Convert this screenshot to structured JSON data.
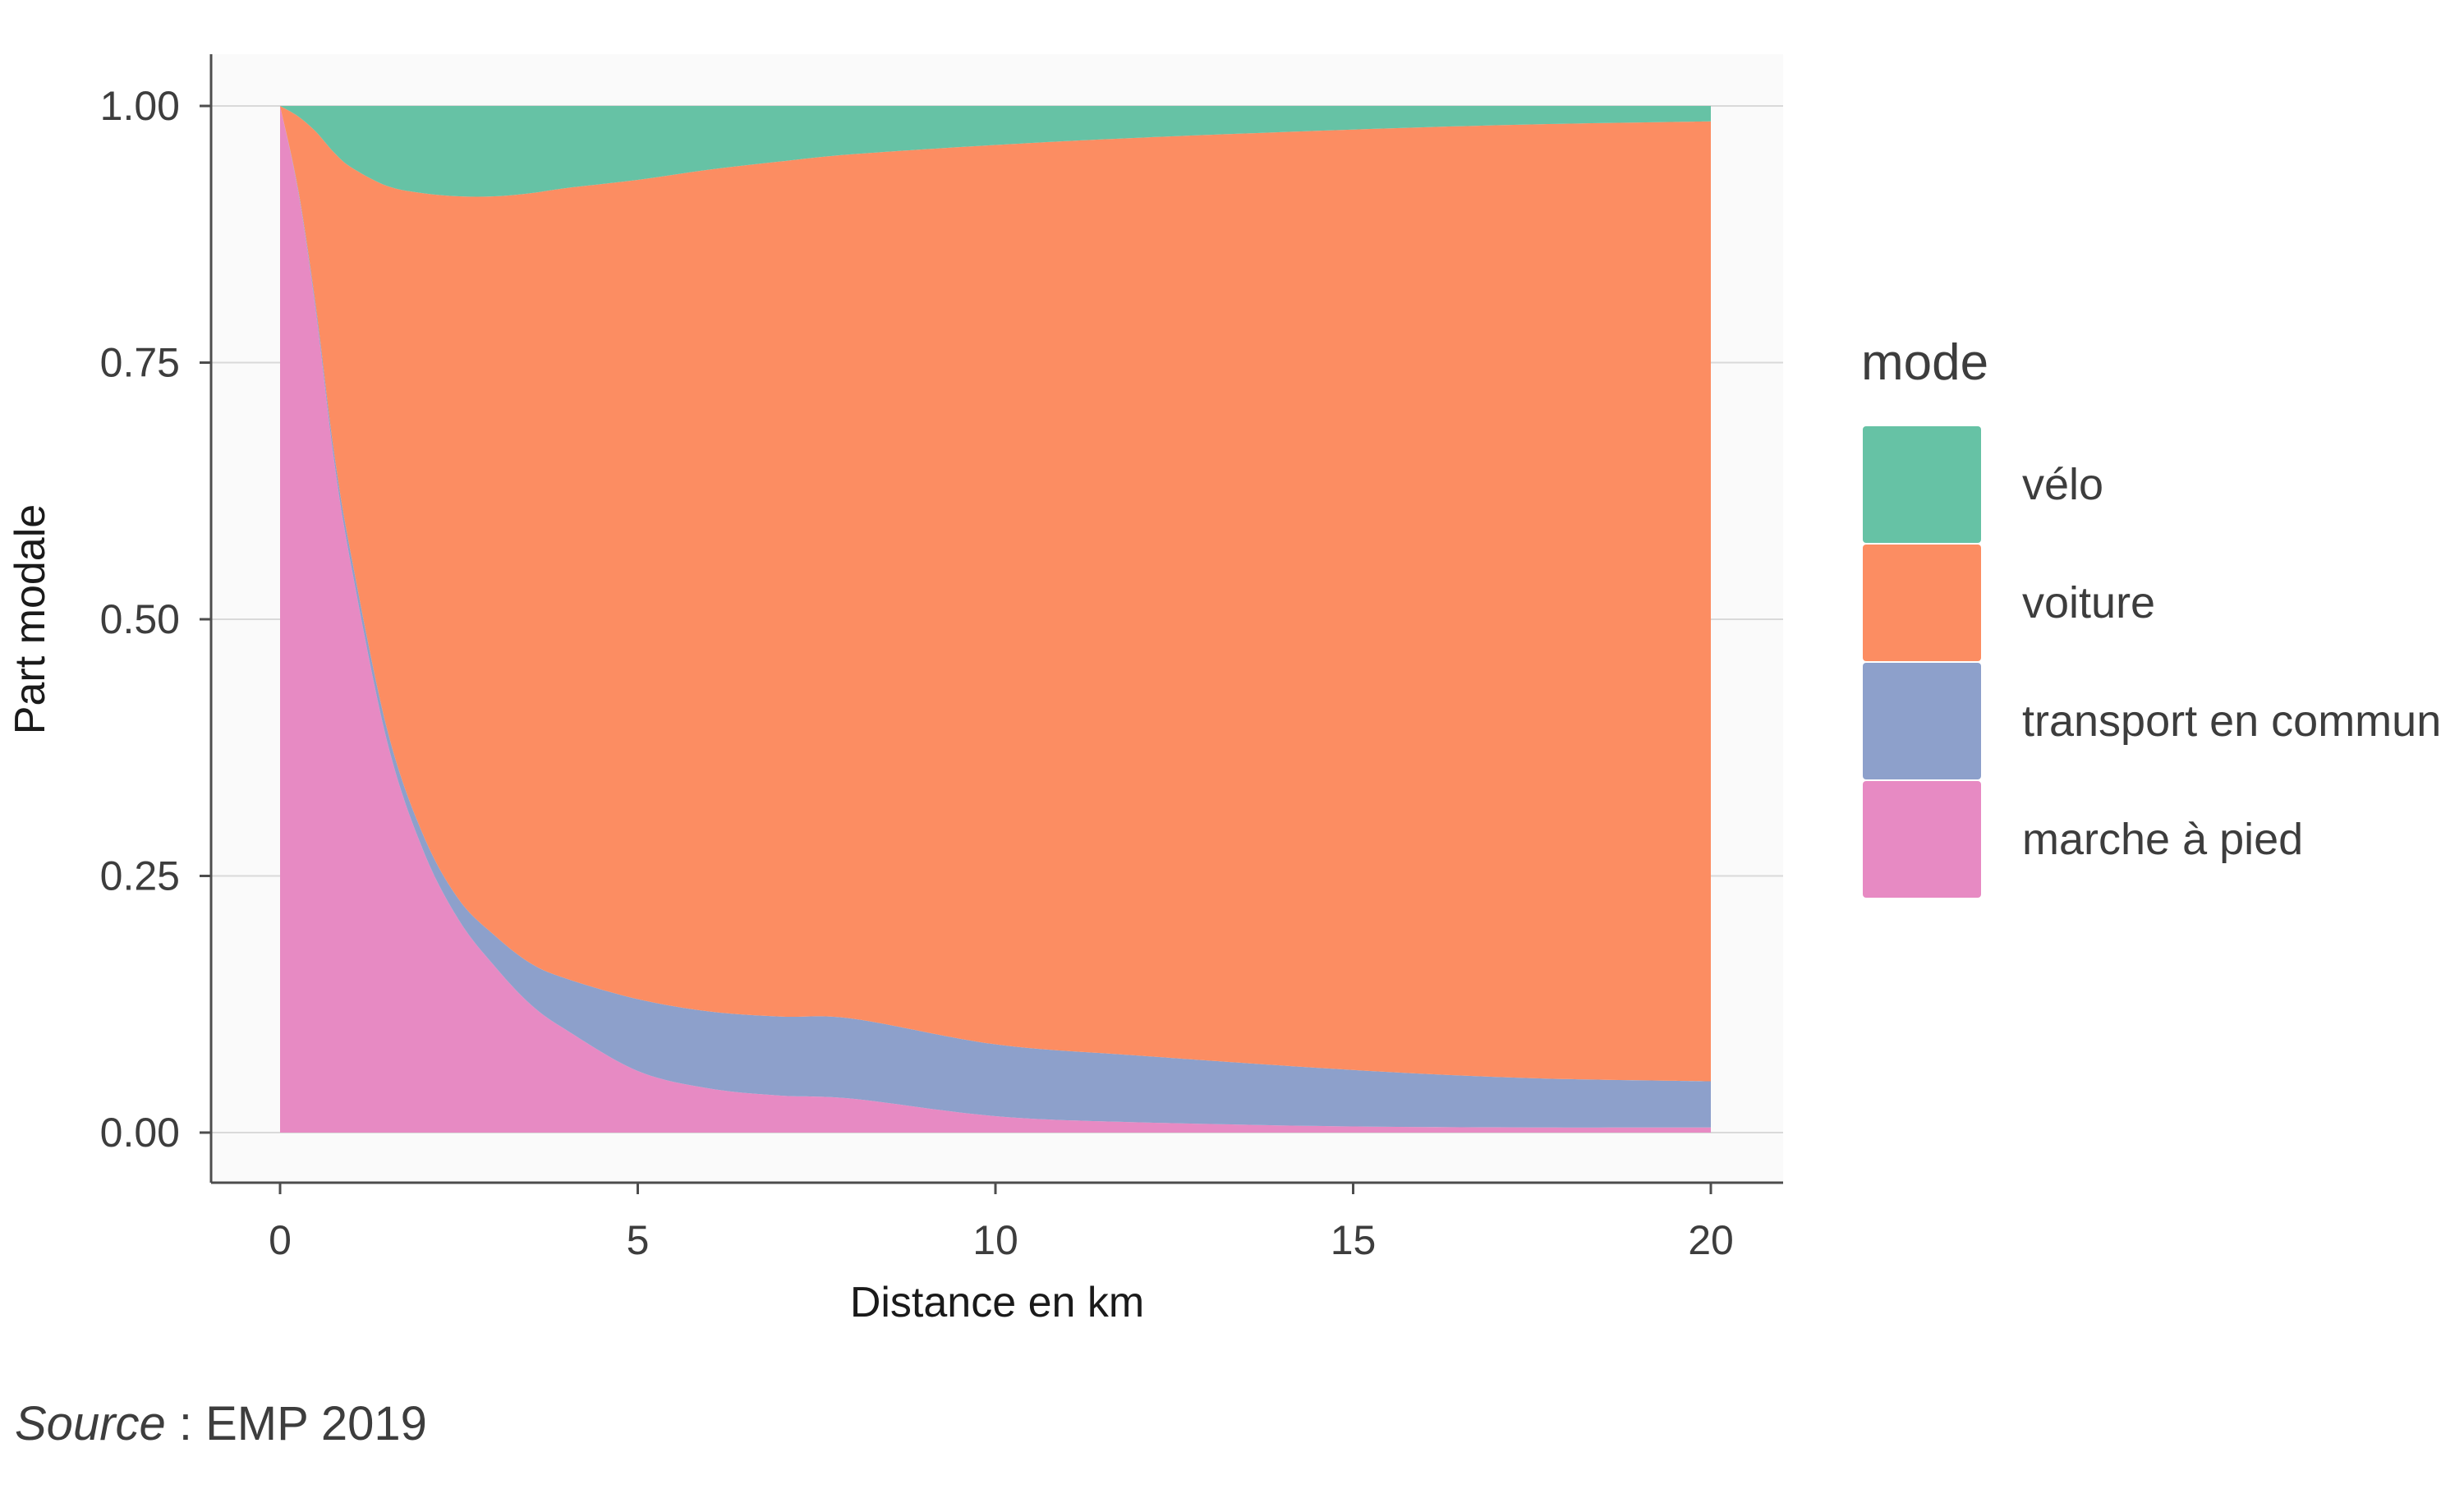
{
  "chart_data": {
    "type": "area",
    "stacked": true,
    "xlabel": "Distance en km",
    "ylabel": "Part modale",
    "xlim": [
      0,
      20
    ],
    "ylim": [
      0,
      1
    ],
    "x_ticks": [
      "0",
      "5",
      "10",
      "15",
      "20"
    ],
    "y_ticks": [
      "0.00",
      "0.25",
      "0.50",
      "0.75",
      "1.00"
    ],
    "grid": "horizontal",
    "legend": {
      "title": "mode",
      "position": "right"
    },
    "x": [
      0,
      0.25,
      0.5,
      0.75,
      1,
      1.5,
      2,
      2.5,
      3,
      3.5,
      4,
      5,
      6,
      7,
      8,
      10,
      12,
      15,
      17.5,
      20
    ],
    "series": [
      {
        "name": "vélo",
        "color": "#66c2a5",
        "values": [
          0,
          0.01,
          0.025,
          0.045,
          0.06,
          0.078,
          0.085,
          0.088,
          0.088,
          0.085,
          0.08,
          0.072,
          0.062,
          0.054,
          0.047,
          0.038,
          0.031,
          0.023,
          0.018,
          0.015
        ]
      },
      {
        "name": "voiture",
        "color": "#fc8d62",
        "values": [
          0,
          0.07,
          0.17,
          0.29,
          0.38,
          0.53,
          0.625,
          0.685,
          0.72,
          0.75,
          0.77,
          0.798,
          0.82,
          0.833,
          0.842,
          0.876,
          0.894,
          0.916,
          0.929,
          0.935
        ]
      },
      {
        "name": "transport en commun",
        "color": "#8da0cb",
        "values": [
          0,
          0.002,
          0.005,
          0.008,
          0.01,
          0.012,
          0.015,
          0.02,
          0.03,
          0.04,
          0.05,
          0.07,
          0.075,
          0.077,
          0.078,
          0.07,
          0.065,
          0.055,
          0.048,
          0.045
        ]
      },
      {
        "name": "marche à pied",
        "color": "#e78ac3",
        "values": [
          1,
          0.918,
          0.8,
          0.657,
          0.55,
          0.38,
          0.275,
          0.207,
          0.162,
          0.125,
          0.1,
          0.06,
          0.043,
          0.036,
          0.033,
          0.016,
          0.01,
          0.006,
          0.005,
          0.005
        ]
      }
    ]
  },
  "caption": {
    "source_label": "Source",
    "source_text": " : EMP 2019"
  }
}
